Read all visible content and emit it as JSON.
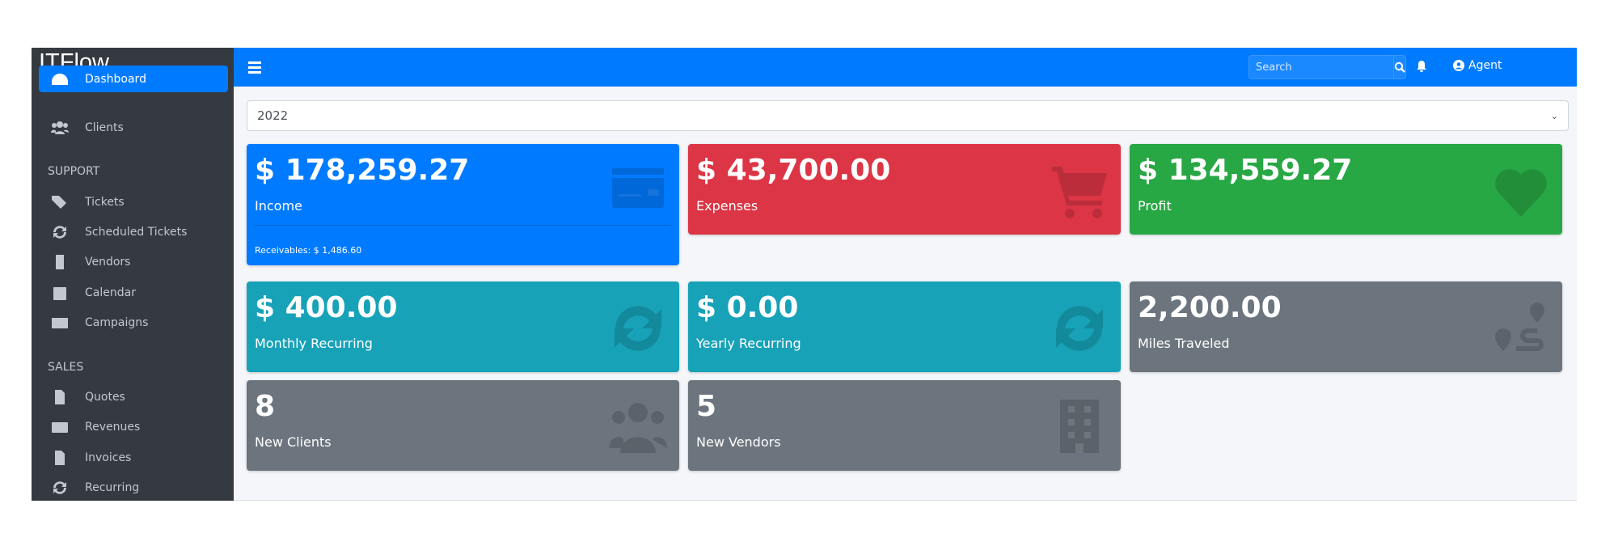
{
  "app": {
    "title": "ITFlow"
  },
  "sidebar": {
    "items": [
      {
        "label": "Dashboard",
        "icon": "tachometer-icon",
        "active": true
      },
      {
        "label": "Clients",
        "icon": "users-icon"
      }
    ],
    "support_header": "SUPPORT",
    "support": [
      {
        "label": "Tickets",
        "icon": "tags-icon"
      },
      {
        "label": "Scheduled Tickets",
        "icon": "sync-icon"
      },
      {
        "label": "Vendors",
        "icon": "building-icon"
      },
      {
        "label": "Calendar",
        "icon": "calendar-icon"
      },
      {
        "label": "Campaigns",
        "icon": "envelope-icon"
      }
    ],
    "sales_header": "SALES",
    "sales": [
      {
        "label": "Quotes",
        "icon": "file-icon"
      },
      {
        "label": "Revenues",
        "icon": "credit-card-icon"
      },
      {
        "label": "Invoices",
        "icon": "file-invoice-icon"
      },
      {
        "label": "Recurring",
        "icon": "sync-icon"
      }
    ]
  },
  "topbar": {
    "search_placeholder": "Search",
    "user": "Agent"
  },
  "year_select": {
    "value": "2022"
  },
  "cards": [
    {
      "value": "$ 178,259.27",
      "label": "Income",
      "footer": "Receivables: $ 1,486.60",
      "color": "#007bff",
      "icon": "credit-card-icon"
    },
    {
      "value": "$ 43,700.00",
      "label": "Expenses",
      "color": "#dc3545",
      "icon": "shopping-cart-icon"
    },
    {
      "value": "$ 134,559.27",
      "label": "Profit",
      "color": "#28a745",
      "icon": "heart-icon"
    },
    {
      "value": "$ 400.00",
      "label": "Monthly Recurring",
      "color": "#17a2b8",
      "icon": "sync-icon"
    },
    {
      "value": "$ 0.00",
      "label": "Yearly Recurring",
      "color": "#17a2b8",
      "icon": "sync-icon"
    },
    {
      "value": "2,200.00",
      "label": "Miles Traveled",
      "color": "#6c757d",
      "icon": "route-icon"
    },
    {
      "value": "8",
      "label": "New Clients",
      "color": "#6c757d",
      "icon": "users-icon"
    },
    {
      "value": "5",
      "label": "New Vendors",
      "color": "#6c757d",
      "icon": "building-icon"
    }
  ]
}
